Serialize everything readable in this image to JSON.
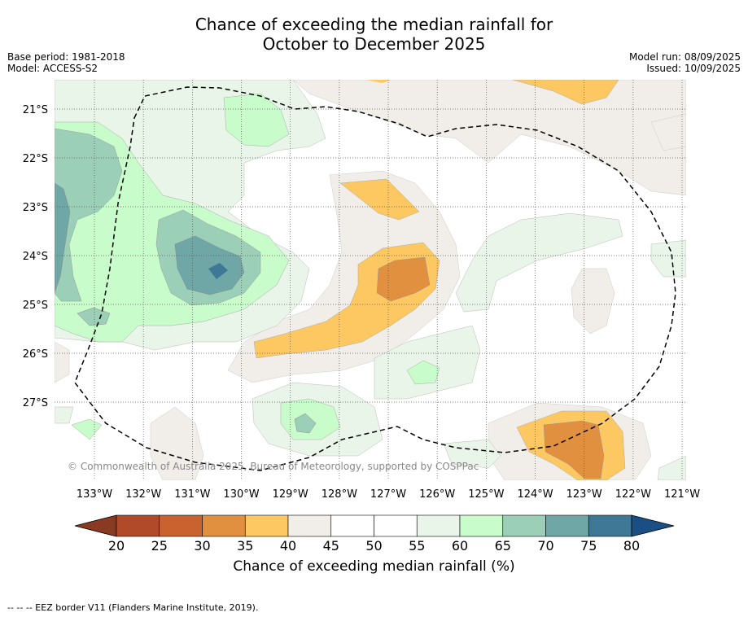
{
  "header": {
    "title_line1": "Chance of exceeding the median rainfall for",
    "title_line2": "October to December 2025",
    "base_period": "Base period: 1981-2018",
    "model": "Model: ACCESS-S2",
    "model_run": "Model run: 08/09/2025",
    "issued": "Issued: 10/09/2025"
  },
  "map": {
    "lon_labels": [
      "133°W",
      "132°W",
      "131°W",
      "130°W",
      "129°W",
      "128°W",
      "127°W",
      "126°W",
      "125°W",
      "124°W",
      "123°W",
      "122°W",
      "121°W"
    ],
    "lat_labels": [
      "21°S",
      "22°S",
      "23°S",
      "24°S",
      "25°S",
      "26°S",
      "27°S"
    ],
    "copyright": "© Commonwealth of Australia 2025, Bureau of Meteorology, supported by COSPPac",
    "colors": {
      "c20": "#b04a28",
      "c25": "#c9622f",
      "c30": "#e0903f",
      "c35": "#fdc862",
      "c40": "#f1ede8",
      "c45": "#ffffff",
      "c50": "#ffffff",
      "c55": "#e8f5e8",
      "c60": "#c9fccb",
      "c65": "#9ccfb8",
      "c70": "#6fa6a6",
      "c75": "#3e7896",
      "low_arrow": "#8a3a22",
      "high_arrow": "#1a4f85"
    }
  },
  "colorbar": {
    "ticks": [
      "20",
      "25",
      "30",
      "35",
      "40",
      "45",
      "50",
      "55",
      "60",
      "65",
      "70",
      "75",
      "80"
    ],
    "label": "Chance of exceeding median rainfall (%)"
  },
  "footnote": "--  --  -- EEZ border V11 (Flanders Marine Institute, 2019)."
}
